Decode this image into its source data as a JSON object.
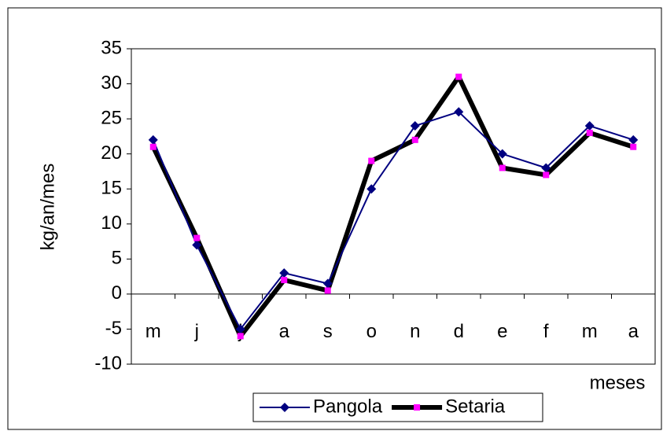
{
  "chart_data": {
    "type": "line",
    "x_label": "meses",
    "y_label": "kg/an/mes",
    "categories": [
      "m",
      "j",
      "j",
      "a",
      "s",
      "o",
      "n",
      "d",
      "e",
      "f",
      "m",
      "a"
    ],
    "series": [
      {
        "name": "Pangola",
        "color": "#000080",
        "marker": "diamond",
        "values": [
          22,
          7,
          -5,
          3,
          1.5,
          15,
          24,
          26,
          20,
          18,
          24,
          22
        ]
      },
      {
        "name": "Setaria",
        "color": "#000000",
        "marker_color": "#ff00ff",
        "marker": "square",
        "values": [
          21,
          8,
          -6,
          2,
          0.5,
          19,
          22,
          31,
          18,
          17,
          23,
          21
        ]
      }
    ],
    "ylim": [
      -10,
      35
    ],
    "yticks": [
      -10,
      -5,
      0,
      5,
      10,
      15,
      20,
      25,
      30,
      35
    ],
    "legend": "bottom"
  }
}
